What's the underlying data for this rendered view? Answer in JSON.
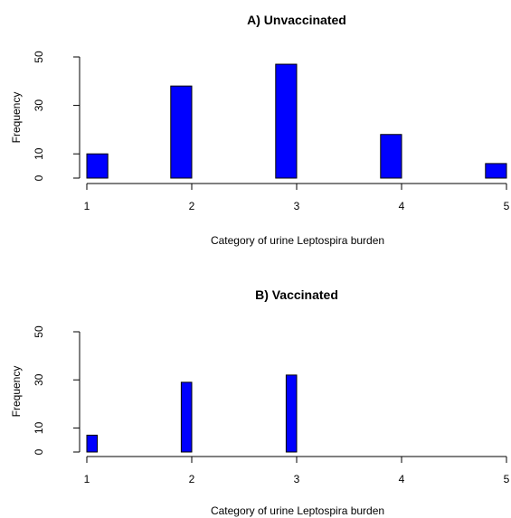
{
  "chart_data": [
    {
      "type": "bar",
      "title": "A) Unvaccinated",
      "xlabel": "Category of urine Leptospira burden",
      "ylabel": "Frequency",
      "x_ticks": [
        1,
        2,
        3,
        4,
        5
      ],
      "y_ticks": [
        0,
        10,
        30,
        50
      ],
      "xlim": [
        1,
        5
      ],
      "ylim": [
        0,
        50
      ],
      "bars": [
        {
          "x_start": 1.0,
          "x_end": 1.2,
          "value": 10
        },
        {
          "x_start": 1.2,
          "x_end": 1.8,
          "value": 0
        },
        {
          "x_start": 1.8,
          "x_end": 2.0,
          "value": 38
        },
        {
          "x_start": 2.0,
          "x_end": 2.8,
          "value": 0
        },
        {
          "x_start": 2.8,
          "x_end": 3.0,
          "value": 47
        },
        {
          "x_start": 3.0,
          "x_end": 3.8,
          "value": 0
        },
        {
          "x_start": 3.8,
          "x_end": 4.0,
          "value": 18
        },
        {
          "x_start": 4.0,
          "x_end": 4.8,
          "value": 0
        },
        {
          "x_start": 4.8,
          "x_end": 5.0,
          "value": 6
        }
      ],
      "bar_color": "#0000ff",
      "grid": false
    },
    {
      "type": "bar",
      "title": "B) Vaccinated",
      "xlabel": "Category of urine Leptospira burden",
      "ylabel": "Frequency",
      "x_ticks": [
        1,
        2,
        3,
        4,
        5
      ],
      "y_ticks": [
        0,
        10,
        30,
        50
      ],
      "xlim": [
        1,
        5
      ],
      "ylim": [
        0,
        50
      ],
      "bars": [
        {
          "x_start": 1.0,
          "x_end": 1.1,
          "value": 7
        },
        {
          "x_start": 1.1,
          "x_end": 1.9,
          "value": 0
        },
        {
          "x_start": 1.9,
          "x_end": 2.0,
          "value": 29
        },
        {
          "x_start": 2.0,
          "x_end": 2.9,
          "value": 0
        },
        {
          "x_start": 2.9,
          "x_end": 3.0,
          "value": 32
        }
      ],
      "bar_color": "#0000ff",
      "grid": false
    }
  ]
}
